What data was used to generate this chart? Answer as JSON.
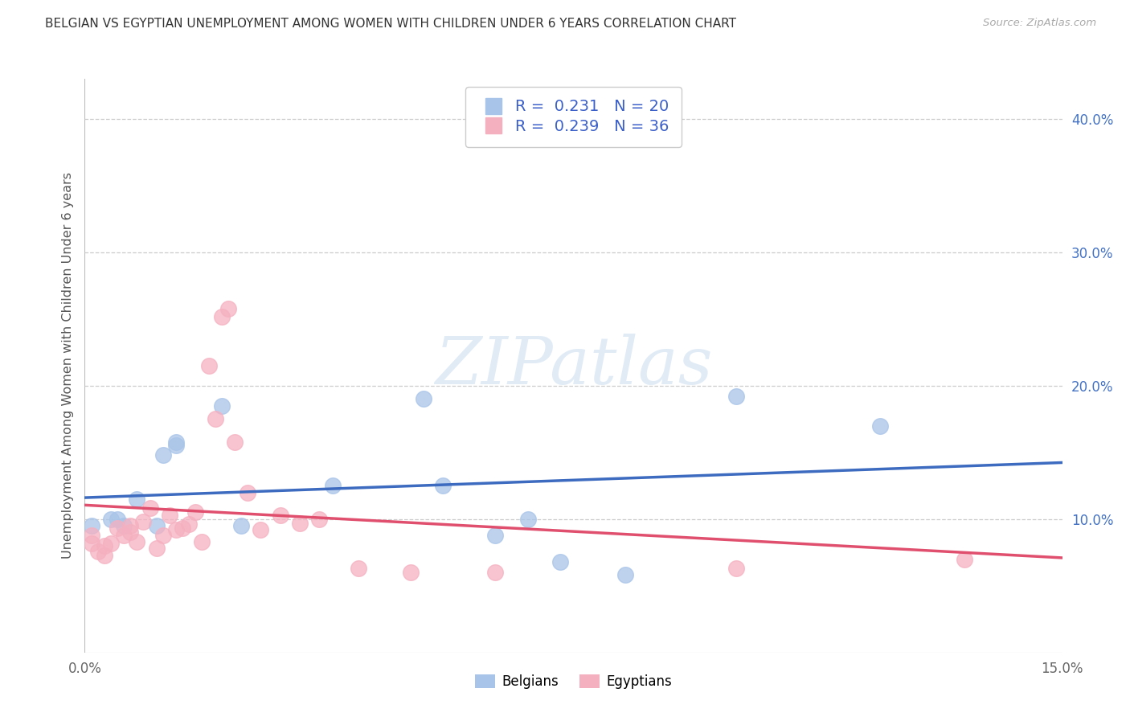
{
  "title": "BELGIAN VS EGYPTIAN UNEMPLOYMENT AMONG WOMEN WITH CHILDREN UNDER 6 YEARS CORRELATION CHART",
  "source": "Source: ZipAtlas.com",
  "ylabel": "Unemployment Among Women with Children Under 6 years",
  "xlim": [
    0.0,
    0.15
  ],
  "ylim": [
    0.0,
    0.43
  ],
  "background_color": "#ffffff",
  "grid_color": "#cccccc",
  "belgians_color": "#a8c4e8",
  "egyptians_color": "#f5b0c0",
  "line_belgian_color": "#3d6bbf",
  "line_egyptian_color": "#e0506e",
  "R_belgian": 0.231,
  "N_belgian": 20,
  "R_egyptian": 0.239,
  "N_egyptian": 36,
  "watermark_text": "ZIPatlas",
  "belgians_x": [
    0.001,
    0.004,
    0.005,
    0.006,
    0.008,
    0.011,
    0.012,
    0.014,
    0.014,
    0.021,
    0.024,
    0.038,
    0.052,
    0.055,
    0.063,
    0.068,
    0.073,
    0.083,
    0.1,
    0.122
  ],
  "belgians_y": [
    0.095,
    0.1,
    0.1,
    0.095,
    0.115,
    0.095,
    0.148,
    0.155,
    0.158,
    0.185,
    0.095,
    0.125,
    0.19,
    0.125,
    0.088,
    0.1,
    0.068,
    0.058,
    0.192,
    0.17
  ],
  "egyptians_x": [
    0.001,
    0.001,
    0.002,
    0.003,
    0.003,
    0.004,
    0.005,
    0.006,
    0.007,
    0.007,
    0.008,
    0.009,
    0.01,
    0.011,
    0.012,
    0.013,
    0.014,
    0.015,
    0.016,
    0.017,
    0.018,
    0.019,
    0.02,
    0.021,
    0.022,
    0.023,
    0.025,
    0.027,
    0.03,
    0.033,
    0.036,
    0.042,
    0.05,
    0.063,
    0.1,
    0.135
  ],
  "egyptians_y": [
    0.082,
    0.088,
    0.076,
    0.073,
    0.08,
    0.082,
    0.093,
    0.088,
    0.09,
    0.095,
    0.083,
    0.098,
    0.108,
    0.078,
    0.088,
    0.103,
    0.092,
    0.093,
    0.096,
    0.105,
    0.083,
    0.215,
    0.175,
    0.252,
    0.258,
    0.158,
    0.12,
    0.092,
    0.103,
    0.097,
    0.1,
    0.063,
    0.06,
    0.06,
    0.063,
    0.07
  ]
}
